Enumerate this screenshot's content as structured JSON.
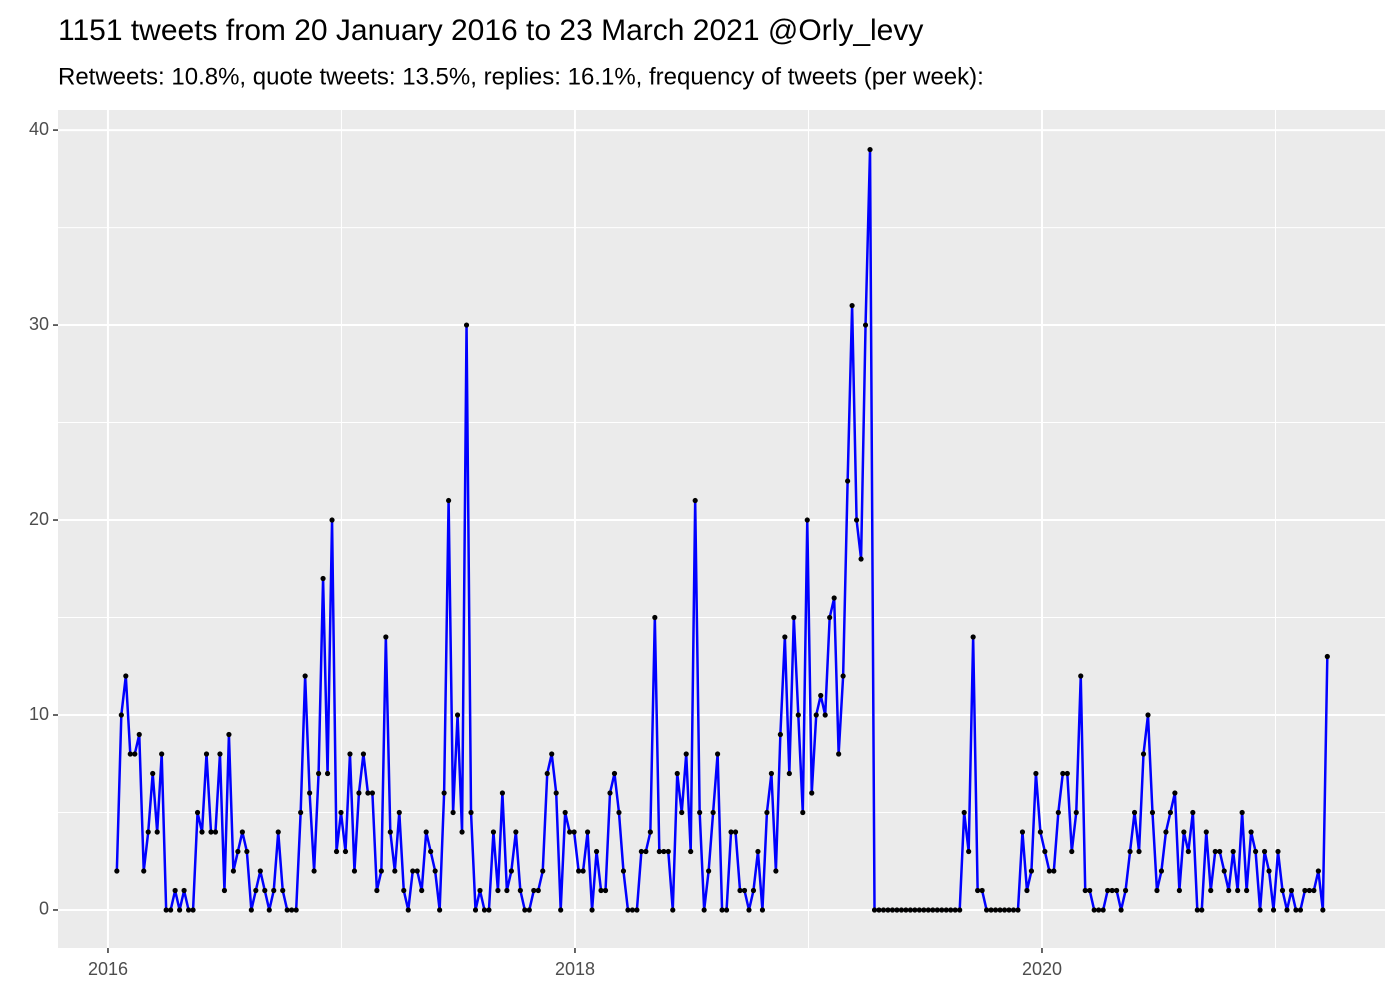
{
  "chart_data": {
    "type": "line",
    "title": "1151 tweets from 20 January 2016 to 23 March 2021 @Orly_levy",
    "subtitle": "Retweets: 10.8%, quote tweets: 13.5%, replies: 16.1%, frequency of tweets (per week):",
    "color": "#0000ff",
    "point_color": "#000000",
    "grid": true,
    "xlim": [
      2015.786,
      2021.469
    ],
    "ylim": [
      -1.95,
      41.03
    ],
    "xticks": [
      2016,
      2018,
      2020
    ],
    "yticks": [
      0,
      10,
      20,
      30,
      40
    ],
    "x_minor_ticks": [
      2017,
      2019,
      2021
    ],
    "y_minor_ticks": [
      5,
      15,
      25,
      35
    ],
    "x": [
      2016.038,
      2016.0572,
      2016.0764,
      2016.0956,
      2016.1148,
      2016.134,
      2016.1532,
      2016.1724,
      2016.1916,
      2016.2108,
      2016.23,
      2016.2492,
      2016.2684,
      2016.2876,
      2016.3068,
      2016.326,
      2016.3452,
      2016.3644,
      2016.3836,
      2016.4028,
      2016.422,
      2016.4412,
      2016.4604,
      2016.4796,
      2016.4988,
      2016.518,
      2016.5372,
      2016.5564,
      2016.5756,
      2016.5948,
      2016.614,
      2016.6332,
      2016.6524,
      2016.6716,
      2016.6908,
      2016.71,
      2016.7292,
      2016.7484,
      2016.7676,
      2016.7868,
      2016.806,
      2016.8252,
      2016.8444,
      2016.8636,
      2016.8828,
      2016.902,
      2016.9212,
      2016.9404,
      2016.9596,
      2016.9788,
      2016.998,
      2017.0172,
      2017.0364,
      2017.0556,
      2017.0748,
      2017.094,
      2017.1132,
      2017.1324,
      2017.1516,
      2017.1708,
      2017.19,
      2017.2092,
      2017.2284,
      2017.2476,
      2017.2668,
      2017.286,
      2017.3052,
      2017.3244,
      2017.3436,
      2017.3628,
      2017.382,
      2017.4012,
      2017.4204,
      2017.4396,
      2017.4588,
      2017.478,
      2017.4972,
      2017.5164,
      2017.5356,
      2017.5548,
      2017.574,
      2017.5932,
      2017.6124,
      2017.6316,
      2017.6508,
      2017.67,
      2017.6892,
      2017.7084,
      2017.7276,
      2017.7468,
      2017.766,
      2017.7852,
      2017.8044,
      2017.8236,
      2017.8428,
      2017.862,
      2017.8812,
      2017.9004,
      2017.9196,
      2017.9388,
      2017.958,
      2017.9772,
      2017.9964,
      2018.0156,
      2018.0348,
      2018.054,
      2018.0732,
      2018.0924,
      2018.1116,
      2018.1308,
      2018.15,
      2018.1692,
      2018.1884,
      2018.2076,
      2018.2268,
      2018.246,
      2018.2652,
      2018.2844,
      2018.3036,
      2018.3228,
      2018.342,
      2018.3612,
      2018.3804,
      2018.3996,
      2018.4188,
      2018.438,
      2018.4572,
      2018.4764,
      2018.4956,
      2018.5148,
      2018.534,
      2018.5532,
      2018.5724,
      2018.5916,
      2018.6108,
      2018.63,
      2018.6492,
      2018.6684,
      2018.6876,
      2018.7068,
      2018.726,
      2018.7452,
      2018.7644,
      2018.7836,
      2018.8028,
      2018.822,
      2018.8412,
      2018.8604,
      2018.8796,
      2018.8988,
      2018.918,
      2018.9372,
      2018.9564,
      2018.9756,
      2018.9948,
      2019.014,
      2019.0332,
      2019.0524,
      2019.0716,
      2019.0908,
      2019.11,
      2019.1292,
      2019.1484,
      2019.1676,
      2019.1868,
      2019.206,
      2019.2252,
      2019.2444,
      2019.2636,
      2019.2828,
      2019.302,
      2019.3212,
      2019.3404,
      2019.3596,
      2019.3788,
      2019.398,
      2019.4172,
      2019.4364,
      2019.4556,
      2019.4748,
      2019.494,
      2019.5132,
      2019.5324,
      2019.5516,
      2019.5708,
      2019.59,
      2019.6092,
      2019.6284,
      2019.6476,
      2019.6668,
      2019.686,
      2019.7052,
      2019.7244,
      2019.7436,
      2019.7628,
      2019.782,
      2019.8012,
      2019.8204,
      2019.8396,
      2019.8588,
      2019.878,
      2019.8972,
      2019.9164,
      2019.9356,
      2019.9548,
      2019.974,
      2019.9932,
      2020.0124,
      2020.0316,
      2020.0508,
      2020.07,
      2020.0892,
      2020.1084,
      2020.1276,
      2020.1468,
      2020.166,
      2020.1852,
      2020.2044,
      2020.2236,
      2020.2428,
      2020.262,
      2020.2812,
      2020.3004,
      2020.3196,
      2020.3388,
      2020.358,
      2020.3772,
      2020.3964,
      2020.4156,
      2020.4348,
      2020.454,
      2020.4732,
      2020.4924,
      2020.5116,
      2020.5308,
      2020.55,
      2020.5692,
      2020.5884,
      2020.6076,
      2020.6268,
      2020.646,
      2020.6652,
      2020.6844,
      2020.7036,
      2020.7228,
      2020.742,
      2020.7612,
      2020.7804,
      2020.7996,
      2020.8188,
      2020.838,
      2020.8572,
      2020.8764,
      2020.8956,
      2020.9148,
      2020.934,
      2020.9532,
      2020.9724,
      2020.9916,
      2021.0108,
      2021.03,
      2021.0492,
      2021.0684,
      2021.0876,
      2021.1068,
      2021.126,
      2021.1452,
      2021.1644,
      2021.1836,
      2021.2028,
      2021.222
    ],
    "values": [
      2,
      10,
      12,
      8,
      8,
      9,
      2,
      4,
      7,
      4,
      8,
      0,
      0,
      1,
      0,
      1,
      0,
      0,
      5,
      4,
      8,
      4,
      4,
      8,
      1,
      9,
      2,
      3,
      4,
      3,
      0,
      1,
      2,
      1,
      0,
      1,
      4,
      1,
      0,
      0,
      0,
      5,
      12,
      6,
      2,
      7,
      17,
      7,
      20,
      3,
      5,
      3,
      8,
      2,
      6,
      8,
      6,
      6,
      1,
      2,
      14,
      4,
      2,
      5,
      1,
      0,
      2,
      2,
      1,
      4,
      3,
      2,
      0,
      6,
      21,
      5,
      10,
      4,
      30,
      5,
      0,
      1,
      0,
      0,
      4,
      1,
      6,
      1,
      2,
      4,
      1,
      0,
      0,
      1,
      1,
      2,
      7,
      8,
      6,
      0,
      5,
      4,
      4,
      2,
      2,
      4,
      0,
      3,
      1,
      1,
      6,
      7,
      5,
      2,
      0,
      0,
      0,
      3,
      3,
      4,
      15,
      3,
      3,
      3,
      0,
      7,
      5,
      8,
      3,
      21,
      5,
      0,
      2,
      5,
      8,
      0,
      0,
      4,
      4,
      1,
      1,
      0,
      1,
      3,
      0,
      5,
      7,
      2,
      9,
      14,
      7,
      15,
      10,
      5,
      20,
      6,
      10,
      11,
      10,
      15,
      16,
      8,
      12,
      22,
      31,
      20,
      18,
      30,
      39,
      0,
      0,
      0,
      0,
      0,
      0,
      0,
      0,
      0,
      0,
      0,
      0,
      0,
      0,
      0,
      0,
      0,
      0,
      0,
      0,
      5,
      3,
      14,
      1,
      1,
      0,
      0,
      0,
      0,
      0,
      0,
      0,
      0,
      4,
      1,
      2,
      7,
      4,
      3,
      2,
      2,
      5,
      7,
      7,
      3,
      5,
      12,
      1,
      1,
      0,
      0,
      0,
      1,
      1,
      1,
      0,
      1,
      3,
      5,
      3,
      8,
      10,
      5,
      1,
      2,
      4,
      5,
      6,
      1,
      4,
      3,
      5,
      0,
      0,
      4,
      1,
      3,
      3,
      2,
      1,
      3,
      1,
      5,
      1,
      4,
      3,
      0,
      3,
      2,
      0,
      3,
      1,
      0,
      1,
      0,
      0,
      1,
      1,
      1,
      2,
      0,
      13
    ]
  }
}
